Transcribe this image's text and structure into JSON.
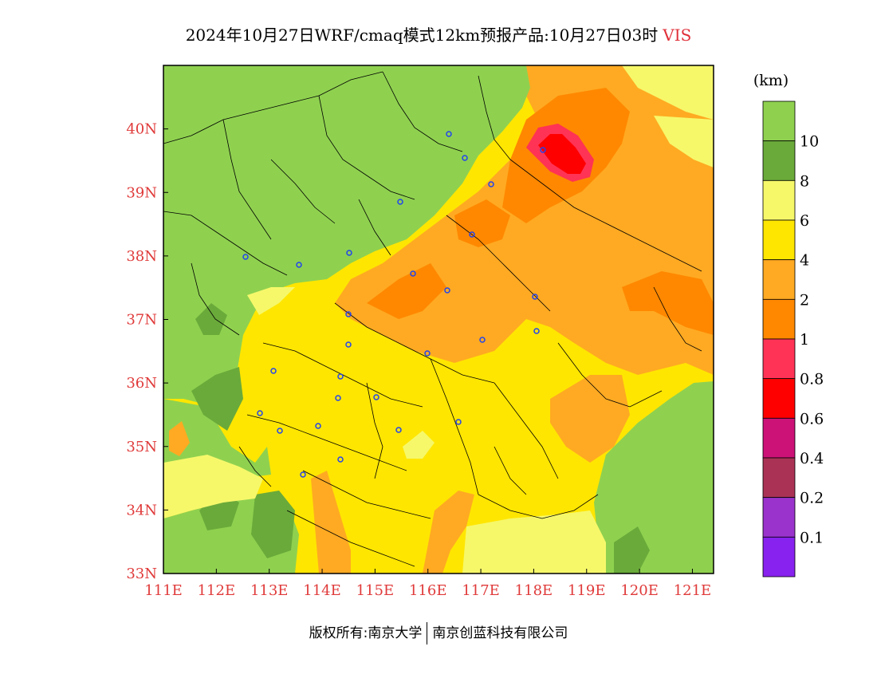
{
  "title": {
    "main": "2024年10月27日WRF/cmaq模式12km预报产品:10月27日03时",
    "variable": "VIS"
  },
  "unit": "(km)",
  "map": {
    "lon_ticks": [
      "111E",
      "112E",
      "113E",
      "114E",
      "115E",
      "116E",
      "117E",
      "118E",
      "119E",
      "120E",
      "121E"
    ],
    "lat_ticks": [
      "33N",
      "34N",
      "35N",
      "36N",
      "37N",
      "38N",
      "39N",
      "40N"
    ],
    "lon_range": [
      111,
      121.4
    ],
    "lat_range": [
      33,
      41
    ]
  },
  "colorbar": {
    "labels": [
      "10",
      "8",
      "6",
      "4",
      "2",
      "1",
      "0.8",
      "0.6",
      "0.4",
      "0.2",
      "0.1"
    ],
    "colors": [
      "#8fd14f",
      "#6aaa3a",
      "#f6f86a",
      "#ffe600",
      "#ffaa22",
      "#ff8800",
      "#ff3355",
      "#ff0000",
      "#cc1177",
      "#aa3355",
      "#9933cc",
      "#8822ee"
    ]
  },
  "colors": {
    "green": "#8fd14f",
    "dark_green": "#6aaa3a",
    "light_yellow": "#f6f86a",
    "yellow": "#ffe600",
    "light_orange": "#ffaa22",
    "orange": "#ff8800",
    "pink": "#ff3355",
    "red": "#ff0000"
  },
  "footer": {
    "left": "版权所有:南京大学",
    "right": "南京创蓝科技有限公司"
  }
}
